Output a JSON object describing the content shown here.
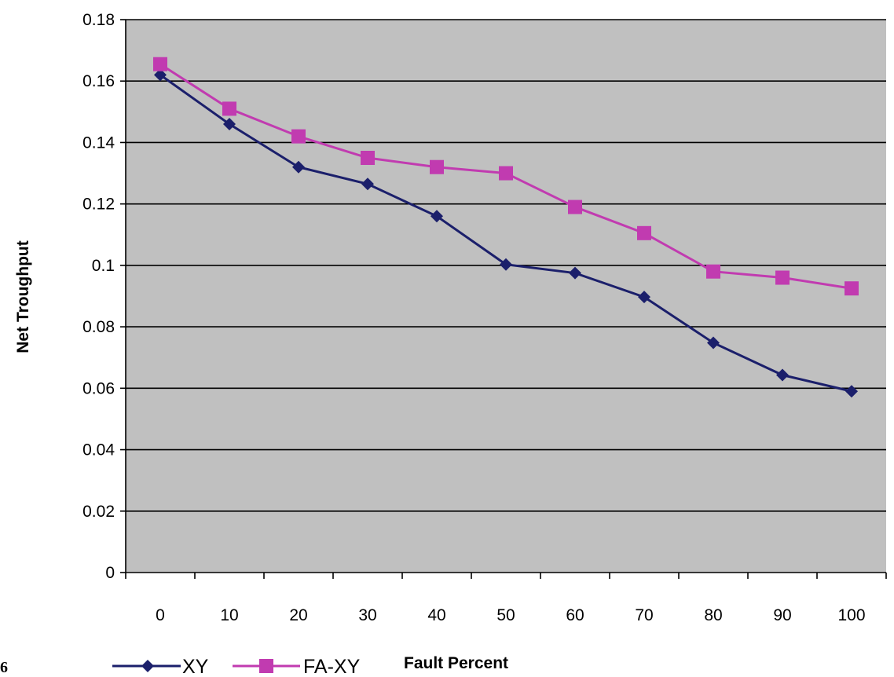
{
  "chart_data": {
    "type": "line",
    "title": "",
    "xlabel": "Fault Percent",
    "ylabel": "Net Troughput",
    "categories": [
      "0",
      "10",
      "20",
      "30",
      "40",
      "50",
      "60",
      "70",
      "80",
      "90",
      "100"
    ],
    "ylim": [
      0,
      0.18
    ],
    "yticks": [
      "0",
      "0.02",
      "0.04",
      "0.06",
      "0.08",
      "0.1",
      "0.12",
      "0.14",
      "0.16",
      "0.18"
    ],
    "grid": true,
    "legend_position": "bottom",
    "plot_background": "#C0C0C0",
    "series": [
      {
        "name": "XY",
        "color": "#1B1F6B",
        "marker": "diamond",
        "values": [
          0.162,
          0.146,
          0.132,
          0.1265,
          0.116,
          0.1003,
          0.0975,
          0.0897,
          0.0748,
          0.0643,
          0.059
        ]
      },
      {
        "name": "FA-XY",
        "color": "#C13BB0",
        "marker": "square",
        "values": [
          0.1655,
          0.151,
          0.142,
          0.135,
          0.132,
          0.13,
          0.119,
          0.1105,
          0.098,
          0.096,
          0.0925
        ]
      }
    ]
  },
  "figure_mark": "6"
}
